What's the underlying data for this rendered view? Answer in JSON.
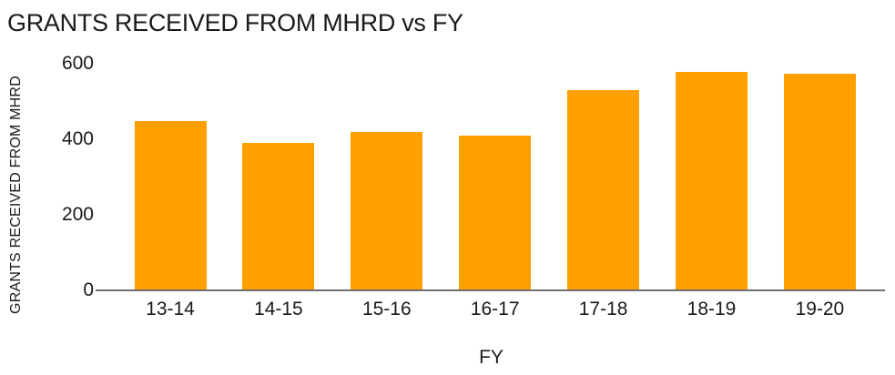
{
  "title": "GRANTS RECEIVED FROM MHRD vs FY",
  "chart_data": {
    "type": "bar",
    "title": "GRANTS RECEIVED FROM MHRD vs FY",
    "categories": [
      "13-14",
      "14-15",
      "15-16",
      "16-17",
      "17-18",
      "18-19",
      "19-20"
    ],
    "values": [
      450,
      390,
      420,
      410,
      530,
      580,
      575
    ],
    "xlabel": "FY",
    "ylabel": "GRANTS RECEIVED FROM MHRD",
    "yticks": [
      0,
      200,
      400,
      600
    ],
    "ylim": [
      0,
      625
    ],
    "grid": false,
    "legend": "none",
    "bar_color": "#FFA000",
    "axis_color": "#707070",
    "text_color": "#1a1a1a"
  }
}
